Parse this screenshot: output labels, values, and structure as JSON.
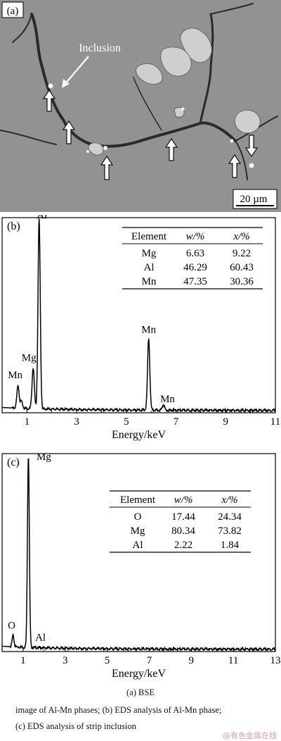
{
  "figure_a": {
    "panel_label": "(a)",
    "inclusion_label": "Inclusion",
    "scale_label": "20 µm"
  },
  "chart_data": [
    {
      "panel_label": "(b)",
      "type": "line",
      "xlabel": "Energy/keV",
      "ylabel": "",
      "x_ticks": [
        "1",
        "3",
        "5",
        "7",
        "9",
        "11"
      ],
      "xlim": [
        0,
        11
      ],
      "ylim": [
        0,
        100
      ],
      "peaks": [
        {
          "label": "Mn",
          "x": 0.64,
          "y": 14
        },
        {
          "label": "",
          "x": 0.78,
          "y": 6
        },
        {
          "label": "Mg",
          "x": 1.25,
          "y": 23
        },
        {
          "label": "Al",
          "x": 1.49,
          "y": 99
        },
        {
          "label": "Mn",
          "x": 5.9,
          "y": 38
        },
        {
          "label": "Mn",
          "x": 6.49,
          "y": 4
        }
      ],
      "table": {
        "headers": [
          "Element",
          "w/%",
          "x/%"
        ],
        "rows": [
          [
            "Mg",
            "6.63",
            "9.22"
          ],
          [
            "Al",
            "46.29",
            "60.43"
          ],
          [
            "Mn",
            "47.35",
            "30.36"
          ]
        ]
      }
    },
    {
      "panel_label": "(c)",
      "type": "line",
      "xlabel": "Energy/keV",
      "ylabel": "",
      "x_ticks": [
        "1",
        "3",
        "5",
        "7",
        "9",
        "11",
        "13"
      ],
      "xlim": [
        0,
        13
      ],
      "ylim": [
        0,
        100
      ],
      "peaks": [
        {
          "label": "O",
          "x": 0.52,
          "y": 8
        },
        {
          "label": "Mg",
          "x": 1.25,
          "y": 99
        },
        {
          "label": "Al",
          "x": 1.49,
          "y": 2
        }
      ],
      "table": {
        "headers": [
          "Element",
          "w/%",
          "x/%"
        ],
        "rows": [
          [
            "O",
            "17.44",
            "24.34"
          ],
          [
            "Mg",
            "80.34",
            "73.82"
          ],
          [
            "Al",
            "2.22",
            "1.84"
          ]
        ]
      }
    }
  ],
  "captions": {
    "line1": "(a) BSE",
    "line2": "image of Al-Mn phases; (b) EDS analysis of Al-Mn phase;",
    "line3": "(c) EDS analysis of strip inclusion"
  },
  "watermark": "@有色金属在线"
}
